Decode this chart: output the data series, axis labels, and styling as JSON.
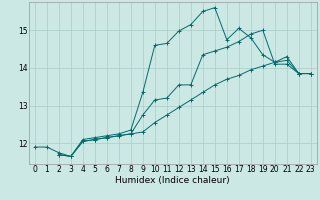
{
  "xlabel": "Humidex (Indice chaleur)",
  "xlim": [
    -0.5,
    23.5
  ],
  "ylim": [
    11.45,
    15.75
  ],
  "background_color": "#cce8e5",
  "grid_color": "#aaccca",
  "line_color": "#006b6b",
  "line1_x": [
    0,
    1,
    2,
    3,
    4,
    5,
    6,
    7,
    8,
    9,
    10,
    11,
    12,
    13,
    14,
    15,
    16,
    17,
    18,
    19,
    20,
    21,
    22,
    23
  ],
  "line1_y": [
    11.9,
    11.9,
    11.75,
    11.65,
    12.1,
    12.15,
    12.2,
    12.25,
    12.35,
    13.35,
    14.6,
    14.65,
    14.98,
    15.15,
    15.5,
    15.6,
    14.75,
    15.05,
    14.8,
    14.35,
    14.15,
    14.2,
    13.85,
    13.85
  ],
  "line2_x": [
    2,
    3,
    4,
    5,
    6,
    7,
    8,
    9,
    10,
    11,
    12,
    13,
    14,
    15,
    16,
    17,
    18,
    19,
    20,
    21,
    22,
    23
  ],
  "line2_y": [
    11.7,
    11.65,
    12.05,
    12.1,
    12.15,
    12.2,
    12.25,
    12.75,
    13.15,
    13.2,
    13.55,
    13.55,
    14.35,
    14.45,
    14.55,
    14.7,
    14.9,
    15.0,
    14.1,
    14.1,
    13.85,
    13.85
  ],
  "line3_x": [
    2,
    3,
    4,
    5,
    6,
    7,
    8,
    9,
    10,
    11,
    12,
    13,
    14,
    15,
    16,
    17,
    18,
    19,
    20,
    21,
    22,
    23
  ],
  "line3_y": [
    11.7,
    11.65,
    12.05,
    12.1,
    12.15,
    12.2,
    12.25,
    12.3,
    12.55,
    12.75,
    12.95,
    13.15,
    13.35,
    13.55,
    13.7,
    13.8,
    13.95,
    14.05,
    14.15,
    14.3,
    13.85,
    13.85
  ],
  "xticks": [
    0,
    1,
    2,
    3,
    4,
    5,
    6,
    7,
    8,
    9,
    10,
    11,
    12,
    13,
    14,
    15,
    16,
    17,
    18,
    19,
    20,
    21,
    22,
    23
  ],
  "yticks": [
    12,
    13,
    14,
    15
  ],
  "tick_fontsize": 5.5,
  "xlabel_fontsize": 6.5
}
